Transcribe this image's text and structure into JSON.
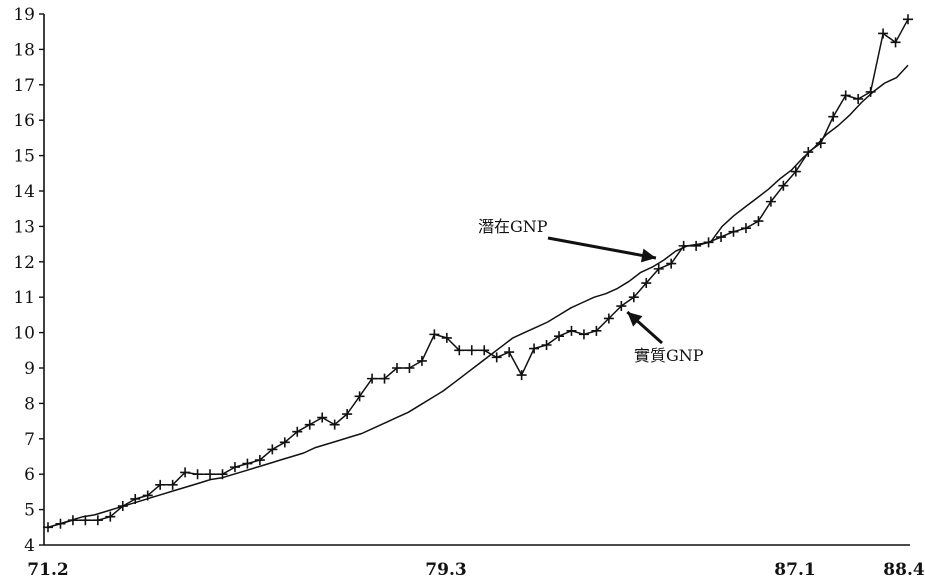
{
  "chart_data": {
    "type": "line",
    "title": "",
    "xlabel": "",
    "ylabel": "",
    "ylim": [
      4,
      19
    ],
    "yticks": [
      4,
      5,
      6,
      7,
      8,
      9,
      10,
      11,
      12,
      13,
      14,
      15,
      16,
      17,
      18,
      19
    ],
    "xtick_labels": [
      "71.2",
      "79.3",
      "87.1",
      "88.4"
    ],
    "grid": false,
    "legend": "none",
    "series": [
      {
        "id": "potential",
        "style": "plain line",
        "values": [
          4.5,
          4.6,
          4.7,
          4.8,
          4.85,
          4.95,
          5.05,
          5.15,
          5.25,
          5.35,
          5.45,
          5.55,
          5.65,
          5.75,
          5.85,
          5.9,
          6.0,
          6.1,
          6.2,
          6.3,
          6.4,
          6.5,
          6.6,
          6.75,
          6.85,
          6.95,
          7.05,
          7.15,
          7.3,
          7.45,
          7.6,
          7.75,
          7.95,
          8.15,
          8.35,
          8.6,
          8.85,
          9.1,
          9.35,
          9.6,
          9.85,
          10.0,
          10.15,
          10.3,
          10.5,
          10.7,
          10.85,
          11.0,
          11.1,
          11.25,
          11.45,
          11.7,
          11.85,
          12.05,
          12.3,
          12.45,
          12.5,
          12.55,
          13.0,
          13.3,
          13.55,
          13.8,
          14.05,
          14.35,
          14.6,
          14.95,
          15.25,
          15.6,
          15.85,
          16.15,
          16.5,
          16.8,
          17.05,
          17.2,
          17.55
        ]
      },
      {
        "id": "real",
        "style": "line with + markers",
        "values": [
          4.5,
          4.6,
          4.7,
          4.7,
          4.7,
          4.8,
          5.1,
          5.3,
          5.4,
          5.7,
          5.7,
          6.05,
          6.0,
          6.0,
          6.0,
          6.2,
          6.3,
          6.4,
          6.7,
          6.9,
          7.2,
          7.4,
          7.6,
          7.4,
          7.7,
          8.2,
          8.7,
          8.7,
          9.0,
          9.0,
          9.2,
          9.95,
          9.85,
          9.5,
          9.5,
          9.5,
          9.3,
          9.45,
          8.8,
          9.55,
          9.65,
          9.9,
          10.05,
          9.95,
          10.05,
          10.4,
          10.75,
          11.0,
          11.4,
          11.8,
          11.95,
          12.45,
          12.45,
          12.55,
          12.7,
          12.85,
          12.95,
          13.15,
          13.7,
          14.15,
          14.55,
          15.1,
          15.35,
          16.1,
          16.7,
          16.6,
          16.8,
          18.45,
          18.2,
          18.85
        ]
      }
    ],
    "annotations": [
      {
        "text": "潛在GNP",
        "target": "potential",
        "target_index": 53
      },
      {
        "text": "實質GNP",
        "target": "real",
        "target_index": 46
      }
    ]
  }
}
